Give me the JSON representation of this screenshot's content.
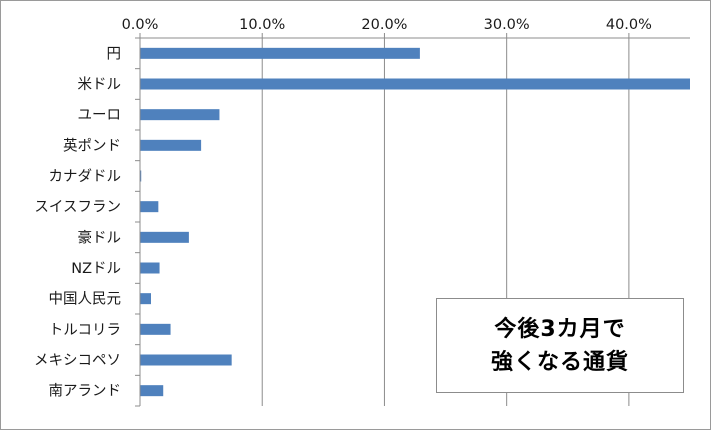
{
  "chart_data": {
    "type": "bar",
    "orientation": "horizontal",
    "title_lines": [
      "今後3カ月で",
      "強くなる通貨"
    ],
    "categories": [
      "円",
      "米ドル",
      "ユーロ",
      "英ポンド",
      "カナダドル",
      "スイスフラン",
      "豪ドル",
      "NZドル",
      "中国人民元",
      "トルコリラ",
      "メキシコペソ",
      "南アランド"
    ],
    "values": [
      22.9,
      45.0,
      6.5,
      5.0,
      0.1,
      1.5,
      4.0,
      1.6,
      0.9,
      2.5,
      7.5,
      1.9
    ],
    "xlim": [
      0,
      45
    ],
    "x_ticks": [
      0,
      10,
      20,
      30,
      40
    ],
    "x_tick_labels": [
      "0.0%",
      "10.0%",
      "20.0%",
      "30.0%",
      "40.0%"
    ],
    "x_axis_position": "top",
    "grid": true,
    "legend": "none",
    "bar_color": "#4f81bd"
  }
}
